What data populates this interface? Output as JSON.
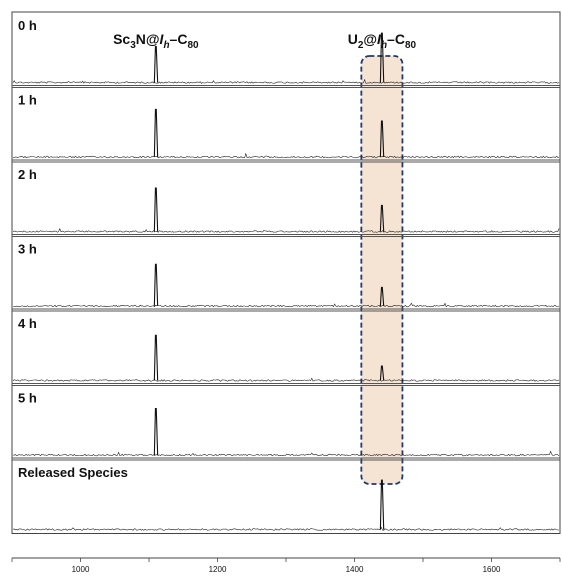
{
  "chart_data": {
    "type": "line",
    "xlim": [
      900,
      1700
    ],
    "x_ticks": [
      1000,
      1200,
      1400,
      1600
    ],
    "x_tick_labels": [
      "1000",
      "1200",
      "1400",
      "1600"
    ],
    "compound_labels": [
      {
        "name": "Sc3N@Ih–C80",
        "base": "Sc",
        "sub1": "3",
        "mid": "N@",
        "italic": "I",
        "italic_sub": "h",
        "dash": "–C",
        "sub2": "80",
        "x": 1110
      },
      {
        "name": "U2@Ih–C80",
        "base": "U",
        "sub1": "2",
        "mid": "@",
        "italic": "I",
        "italic_sub": "h",
        "dash": "–C",
        "sub2": "80",
        "x": 1440
      }
    ],
    "highlight_x_range": [
      1410,
      1470
    ],
    "highlight_color": "#f5e3d3",
    "highlight_border_color": "#1f3a6b",
    "series": [
      {
        "name": "0 h",
        "peaks": [
          {
            "x": 1110,
            "h": 0.62
          },
          {
            "x": 1440,
            "h": 0.85
          }
        ]
      },
      {
        "name": "1 h",
        "peaks": [
          {
            "x": 1110,
            "h": 0.82
          },
          {
            "x": 1440,
            "h": 0.62
          }
        ]
      },
      {
        "name": "2 h",
        "peaks": [
          {
            "x": 1110,
            "h": 0.75
          },
          {
            "x": 1440,
            "h": 0.45
          }
        ]
      },
      {
        "name": "3 h",
        "peaks": [
          {
            "x": 1110,
            "h": 0.72
          },
          {
            "x": 1440,
            "h": 0.32
          }
        ]
      },
      {
        "name": "4 h",
        "peaks": [
          {
            "x": 1110,
            "h": 0.78
          },
          {
            "x": 1440,
            "h": 0.25
          }
        ]
      },
      {
        "name": "5 h",
        "peaks": [
          {
            "x": 1110,
            "h": 0.8
          }
        ]
      },
      {
        "name": "Released Species",
        "peaks": [
          {
            "x": 1440,
            "h": 0.85
          }
        ]
      }
    ]
  }
}
